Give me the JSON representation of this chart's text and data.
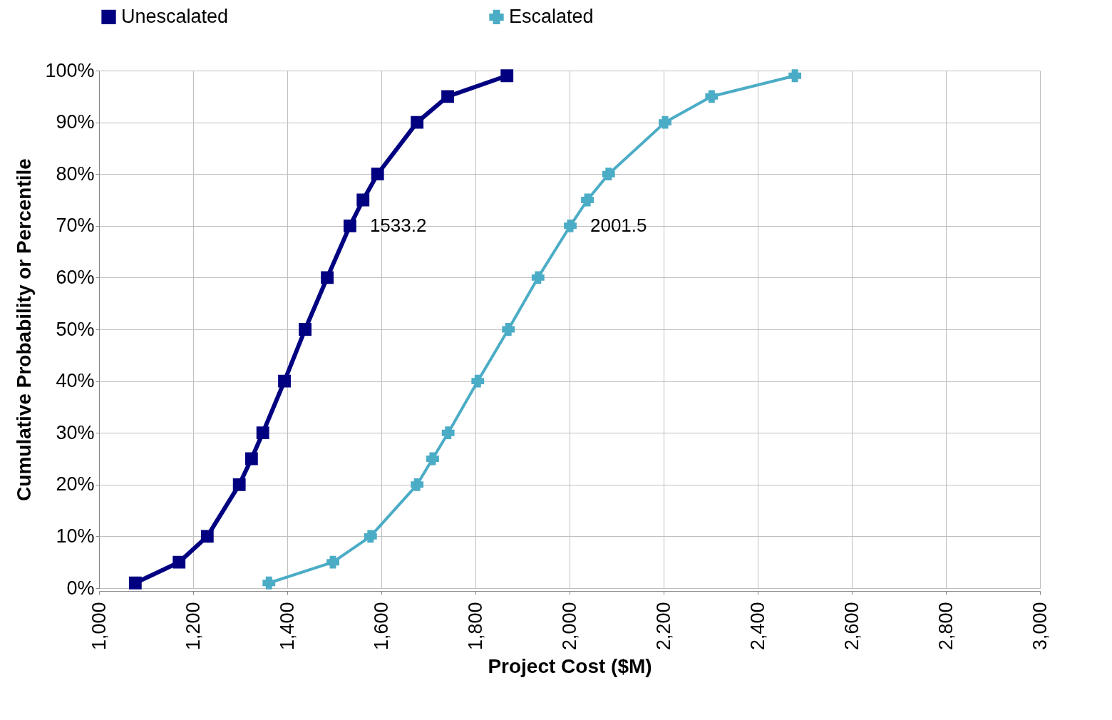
{
  "chart_data": {
    "type": "line",
    "xlabel": "Project Cost ($M)",
    "ylabel": "Cumulative Probability or Percentile",
    "xlim": [
      1000,
      3000
    ],
    "xticks": [
      {
        "value": 1000,
        "label": "1,000"
      },
      {
        "value": 1200,
        "label": "1,200"
      },
      {
        "value": 1400,
        "label": "1,400"
      },
      {
        "value": 1600,
        "label": "1,600"
      },
      {
        "value": 1800,
        "label": "1,800"
      },
      {
        "value": 2000,
        "label": "2,000"
      },
      {
        "value": 2200,
        "label": "2,200"
      },
      {
        "value": 2400,
        "label": "2,400"
      },
      {
        "value": 2600,
        "label": "2,600"
      },
      {
        "value": 2800,
        "label": "2,800"
      },
      {
        "value": 3000,
        "label": "3,000"
      }
    ],
    "ylim": [
      0,
      100
    ],
    "yticks": [
      {
        "value": 0,
        "label": "0%"
      },
      {
        "value": 10,
        "label": "10%"
      },
      {
        "value": 20,
        "label": "20%"
      },
      {
        "value": 30,
        "label": "30%"
      },
      {
        "value": 40,
        "label": "40%"
      },
      {
        "value": 50,
        "label": "50%"
      },
      {
        "value": 60,
        "label": "60%"
      },
      {
        "value": 70,
        "label": "70%"
      },
      {
        "value": 80,
        "label": "80%"
      },
      {
        "value": 90,
        "label": "90%"
      },
      {
        "value": 100,
        "label": "100%"
      }
    ],
    "grid": true,
    "legend": "top",
    "series": [
      {
        "name": "Unescalated",
        "color": "#000080",
        "marker": "square",
        "x": [
          1077,
          1170,
          1230,
          1298,
          1324,
          1348,
          1394,
          1438,
          1485,
          1533.2,
          1561,
          1592,
          1676,
          1741,
          1867
        ],
        "values": [
          1,
          5,
          10,
          20,
          25,
          30,
          40,
          50,
          60,
          70,
          75,
          80,
          90,
          95,
          99
        ]
      },
      {
        "name": "Escalated",
        "color": "#4bacc6",
        "marker": "cross",
        "x": [
          1361,
          1497,
          1577,
          1676,
          1709,
          1742,
          1805,
          1870,
          1933,
          2001.5,
          2038,
          2083,
          2203,
          2302,
          2479
        ],
        "values": [
          1,
          5,
          10,
          20,
          25,
          30,
          40,
          50,
          60,
          70,
          75,
          80,
          90,
          95,
          99
        ]
      }
    ],
    "annotations": [
      {
        "text": "1533.2",
        "x": 1533.2,
        "y": 70
      },
      {
        "text": "2001.5",
        "x": 2001.5,
        "y": 70
      }
    ]
  }
}
